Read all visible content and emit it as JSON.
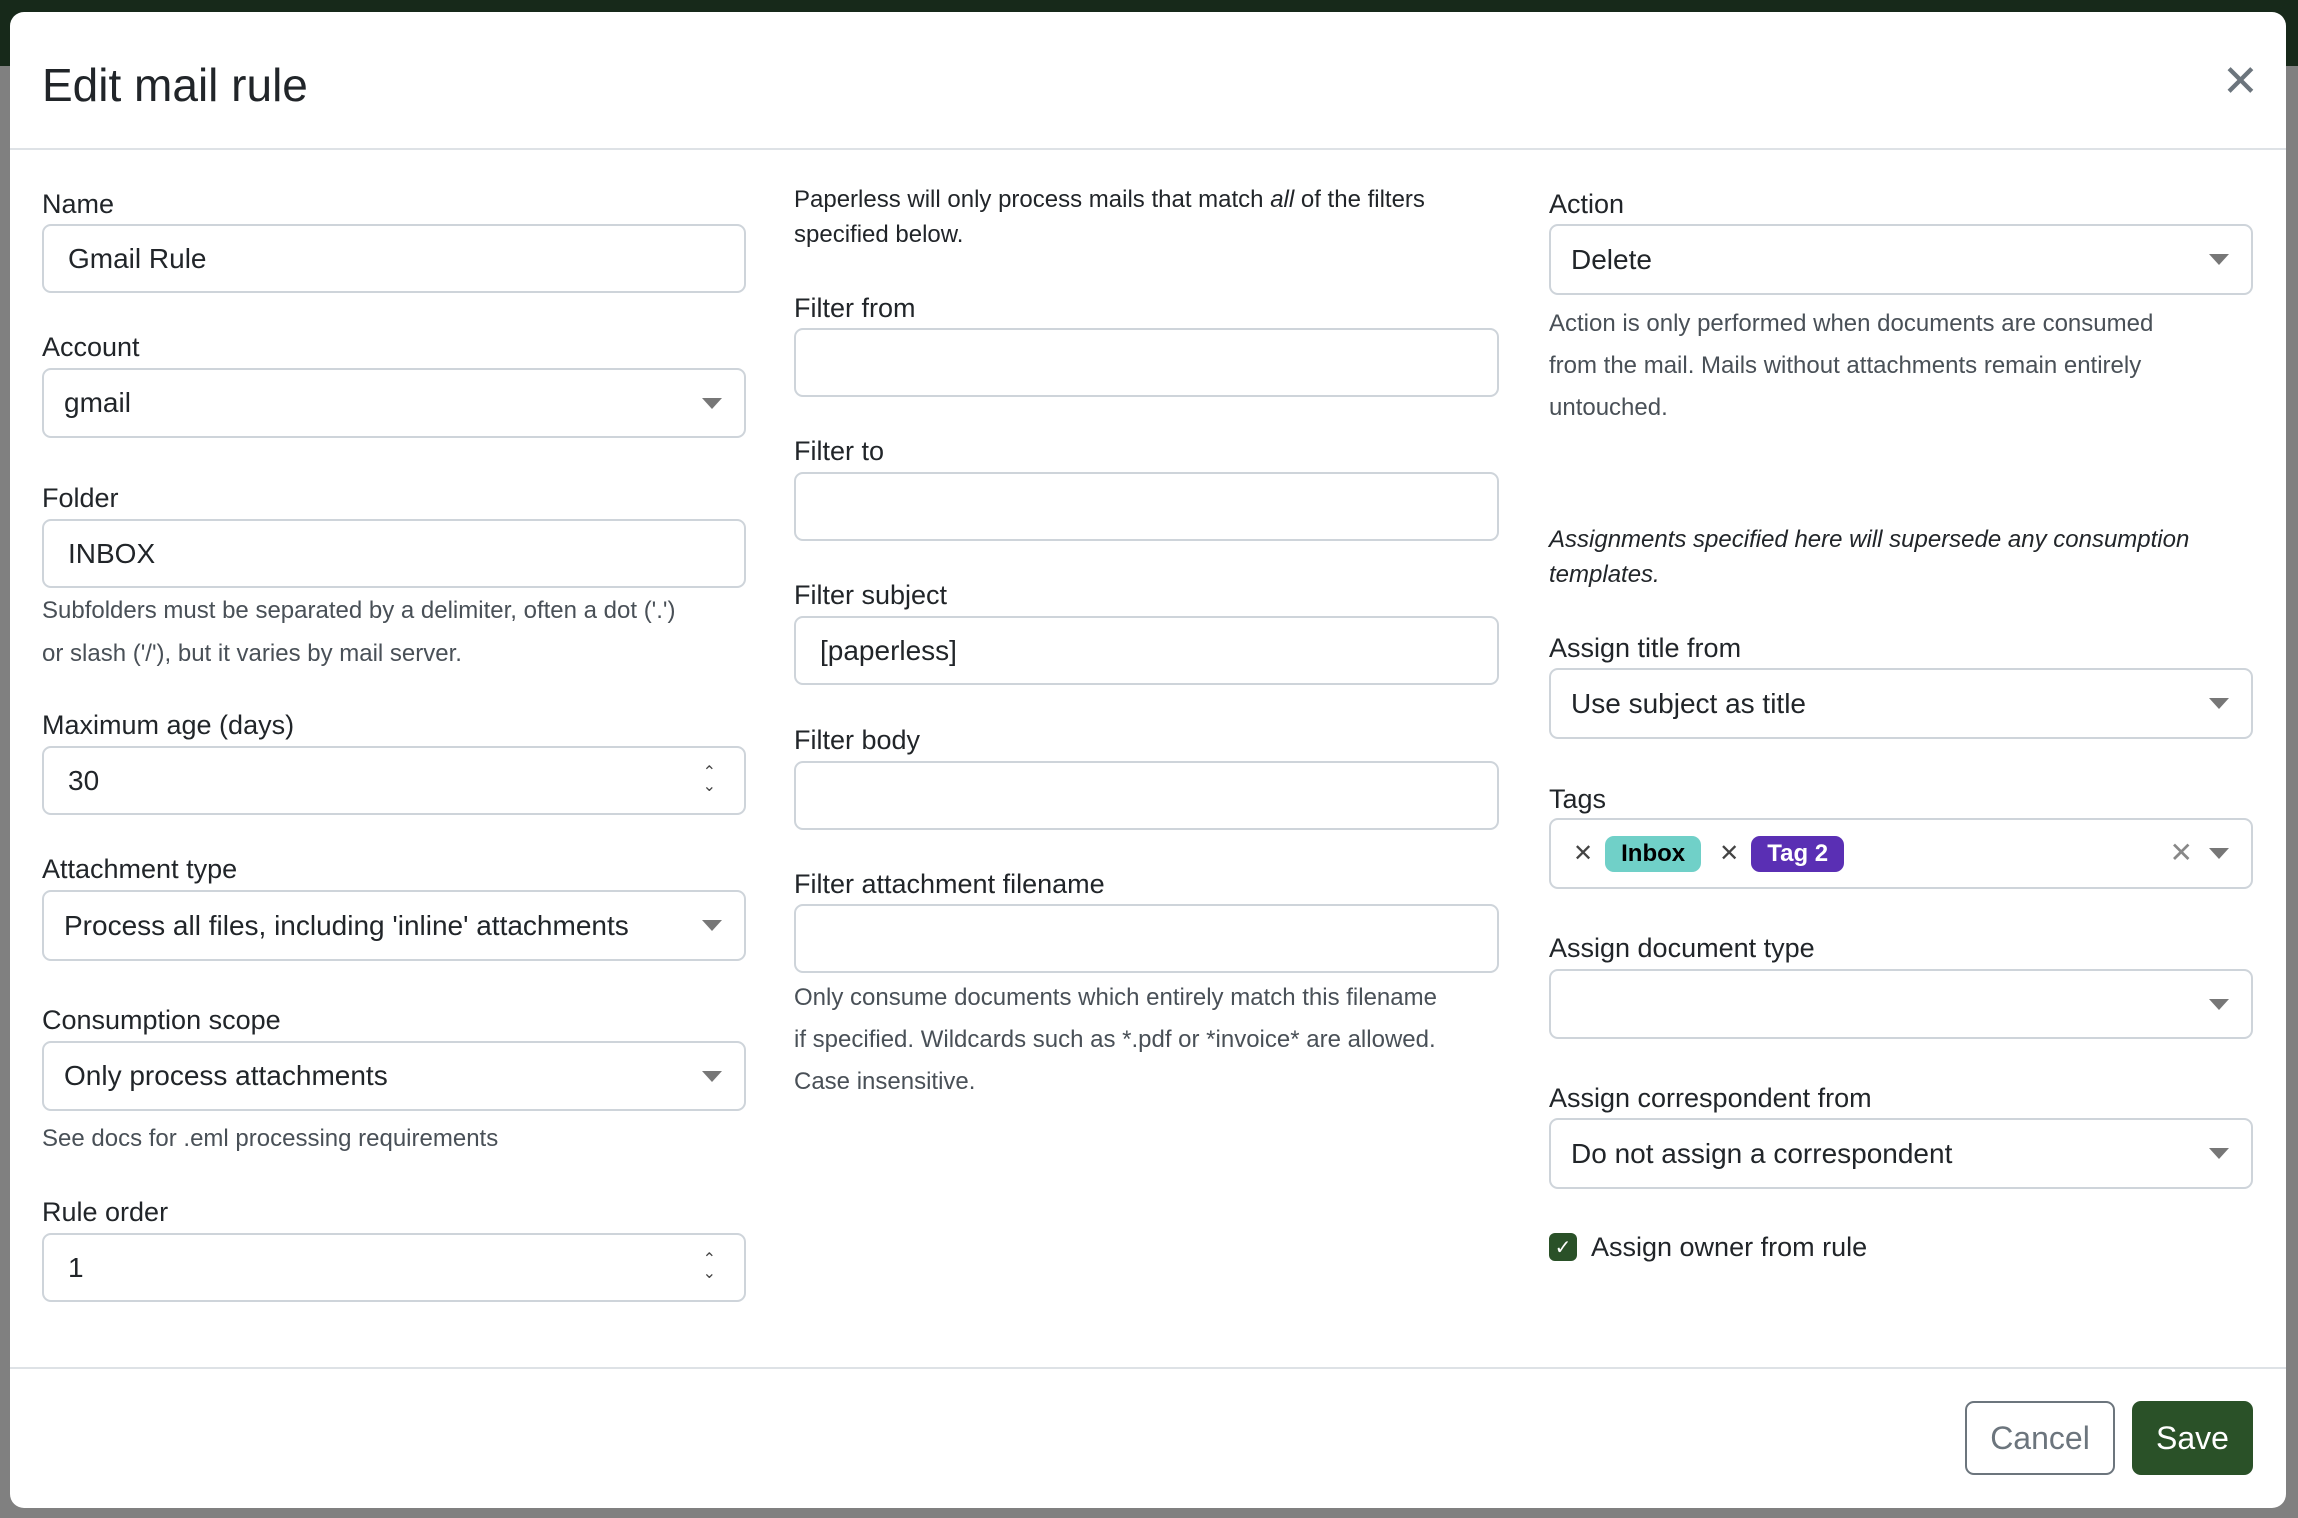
{
  "modal": {
    "title": "Edit mail rule",
    "close_icon": "close-icon"
  },
  "left": {
    "name_label": "Name",
    "name_value": "Gmail Rule",
    "account_label": "Account",
    "account_value": "gmail",
    "folder_label": "Folder",
    "folder_value": "INBOX",
    "folder_hint_1": "Subfolders must be separated by a delimiter, often a dot ('.')",
    "folder_hint_2": "or slash ('/'), but it varies by mail server.",
    "max_age_label": "Maximum age (days)",
    "max_age_value": "30",
    "attachment_type_label": "Attachment type",
    "attachment_type_value": "Process all files, including 'inline' attachments",
    "scope_label": "Consumption scope",
    "scope_value": "Only process attachments",
    "scope_hint": "See docs for .eml processing requirements",
    "rule_order_label": "Rule order",
    "rule_order_value": "1"
  },
  "middle": {
    "intro_1a": "Paperless will only process mails that match ",
    "intro_1b": "all",
    "intro_1c": " of the filters",
    "intro_2": "specified below.",
    "filter_from_label": "Filter from",
    "filter_from_value": "",
    "filter_to_label": "Filter to",
    "filter_to_value": "",
    "filter_subject_label": "Filter subject",
    "filter_subject_value": "[paperless]",
    "filter_body_label": "Filter body",
    "filter_body_value": "",
    "filter_attachment_label": "Filter attachment filename",
    "filter_attachment_value": "",
    "filter_attachment_hint_1": "Only consume documents which entirely match this filename",
    "filter_attachment_hint_2": "if specified. Wildcards such as *.pdf or *invoice* are allowed.",
    "filter_attachment_hint_3": "Case insensitive."
  },
  "right": {
    "action_label": "Action",
    "action_value": "Delete",
    "action_hint_1": "Action is only performed when documents are consumed",
    "action_hint_2": "from the mail. Mails without attachments remain entirely",
    "action_hint_3": "untouched.",
    "assign_note_1": "Assignments specified here will supersede any consumption",
    "assign_note_2": "templates.",
    "title_from_label": "Assign title from",
    "title_from_value": "Use subject as title",
    "tags_label": "Tags",
    "tags": [
      {
        "label": "Inbox",
        "bg": "#70d0c8",
        "fg": "#000000"
      },
      {
        "label": "Tag 2",
        "bg": "#5a2fb4",
        "fg": "#ffffff"
      }
    ],
    "doc_type_label": "Assign document type",
    "doc_type_value": "",
    "correspondent_label": "Assign correspondent from",
    "correspondent_value": "Do not assign a correspondent",
    "owner_checkbox_label": "Assign owner from rule",
    "owner_checked": true
  },
  "footer": {
    "cancel": "Cancel",
    "save": "Save"
  },
  "colors": {
    "primary": "#2a5128",
    "header_bg": "#17291a"
  }
}
